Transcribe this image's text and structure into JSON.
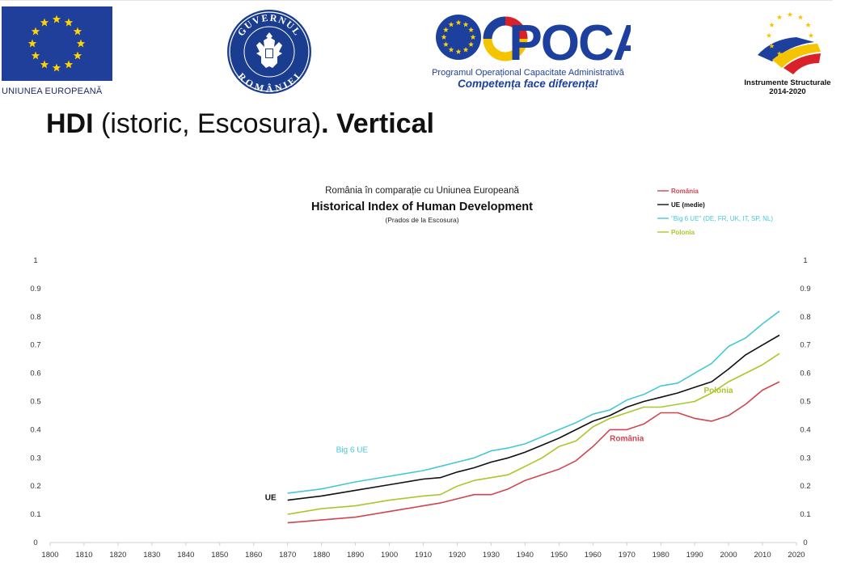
{
  "header": {
    "eu_label": "UNIUNEA EUROPEANĂ",
    "seal_top_text": "GUVERNUL",
    "seal_bottom_text": "ROMÂNIEI",
    "poca_logo_text": "POCA",
    "poca_line1": "Programul Operațional Capacitate Administrativă",
    "poca_line2": "Competența face diferența!",
    "instr_line1": "Instrumente Structurale",
    "instr_line2": "2014-2020"
  },
  "title": {
    "part1": "HDI",
    "part2": " (istoric, Escosura)",
    "part3": ". Vertical"
  },
  "colors": {
    "eu_blue": "#1f3f9a",
    "eu_star": "#ffd400",
    "poca_blue": "#1d3f9e",
    "poca_yellow": "#f5c400",
    "poca_red": "#d9212a",
    "romania": "#d0454f",
    "ue": "#111111",
    "big6": "#45c8d6",
    "polonia": "#a9c72a"
  },
  "chart_data": {
    "type": "line",
    "subtitle": "România în comparație cu Uniunea Europeană",
    "title": "Historical Index of Human Development",
    "source": "(Prados de la Escosura)",
    "xlim": [
      1800,
      2020
    ],
    "ylim": [
      0,
      1
    ],
    "x_ticks": [
      "1800",
      "1810",
      "1820",
      "1830",
      "1840",
      "1850",
      "1860",
      "1870",
      "1880",
      "1890",
      "1900",
      "1910",
      "1920",
      "1930",
      "1940",
      "1950",
      "1960",
      "1970",
      "1980",
      "1990",
      "2000",
      "2010",
      "2020"
    ],
    "y_ticks": [
      "0",
      "0.1",
      "0.2",
      "0.3",
      "0.4",
      "0.5",
      "0.6",
      "0.7",
      "0.8",
      "0.9",
      "1"
    ],
    "grid": false,
    "legend_position": "top-right",
    "series": [
      {
        "key": "romania",
        "name": "România",
        "color": "#d0454f",
        "x": [
          1870,
          1880,
          1890,
          1900,
          1905,
          1910,
          1915,
          1920,
          1925,
          1930,
          1935,
          1940,
          1945,
          1950,
          1955,
          1960,
          1965,
          1970,
          1975,
          1980,
          1985,
          1990,
          1995,
          2000,
          2005,
          2010,
          2015
        ],
        "values": [
          0.07,
          0.08,
          0.09,
          0.11,
          0.12,
          0.13,
          0.14,
          0.155,
          0.17,
          0.17,
          0.19,
          0.22,
          0.24,
          0.26,
          0.29,
          0.34,
          0.4,
          0.4,
          0.42,
          0.46,
          0.46,
          0.44,
          0.43,
          0.45,
          0.49,
          0.54,
          0.57
        ]
      },
      {
        "key": "ue",
        "name": "UE (medie)",
        "color": "#111111",
        "x": [
          1870,
          1880,
          1890,
          1900,
          1910,
          1915,
          1920,
          1925,
          1930,
          1935,
          1940,
          1945,
          1950,
          1955,
          1960,
          1965,
          1970,
          1975,
          1980,
          1985,
          1990,
          1995,
          2000,
          2005,
          2010,
          2015
        ],
        "values": [
          0.15,
          0.165,
          0.185,
          0.205,
          0.225,
          0.23,
          0.25,
          0.265,
          0.285,
          0.3,
          0.32,
          0.345,
          0.37,
          0.4,
          0.43,
          0.45,
          0.48,
          0.5,
          0.515,
          0.53,
          0.55,
          0.57,
          0.615,
          0.665,
          0.7,
          0.735
        ]
      },
      {
        "key": "big6",
        "name": "\"Big 6 UE\" (DE, FR, UK, IT, SP, NL)",
        "color": "#45c8d6",
        "x": [
          1870,
          1880,
          1890,
          1900,
          1910,
          1915,
          1920,
          1925,
          1930,
          1935,
          1940,
          1945,
          1950,
          1955,
          1960,
          1965,
          1970,
          1975,
          1980,
          1985,
          1990,
          1995,
          2000,
          2005,
          2010,
          2015
        ],
        "values": [
          0.175,
          0.19,
          0.215,
          0.235,
          0.255,
          0.27,
          0.285,
          0.3,
          0.325,
          0.335,
          0.35,
          0.375,
          0.4,
          0.425,
          0.455,
          0.47,
          0.505,
          0.525,
          0.555,
          0.565,
          0.6,
          0.635,
          0.695,
          0.725,
          0.775,
          0.82
        ]
      },
      {
        "key": "polonia",
        "name": "Polonia",
        "color": "#a9c72a",
        "x": [
          1870,
          1880,
          1890,
          1900,
          1910,
          1915,
          1920,
          1925,
          1930,
          1935,
          1940,
          1945,
          1950,
          1955,
          1960,
          1965,
          1970,
          1975,
          1980,
          1985,
          1990,
          1995,
          2000,
          2005,
          2010,
          2015
        ],
        "values": [
          0.1,
          0.12,
          0.13,
          0.15,
          0.165,
          0.17,
          0.2,
          0.22,
          0.23,
          0.24,
          0.27,
          0.3,
          0.34,
          0.36,
          0.41,
          0.44,
          0.46,
          0.48,
          0.48,
          0.49,
          0.5,
          0.53,
          0.57,
          0.6,
          0.63,
          0.67
        ]
      }
    ],
    "annotations": [
      {
        "text": "UE",
        "series": "ue",
        "x": 1865,
        "y": 0.15
      },
      {
        "text": "Big 6 UE",
        "series": "big6",
        "x": 1889,
        "y": 0.32
      },
      {
        "text": "România",
        "series": "romania",
        "x": 1970,
        "y": 0.36
      },
      {
        "text": "Polonia",
        "series": "polonia",
        "x": 1997,
        "y": 0.53
      }
    ]
  }
}
